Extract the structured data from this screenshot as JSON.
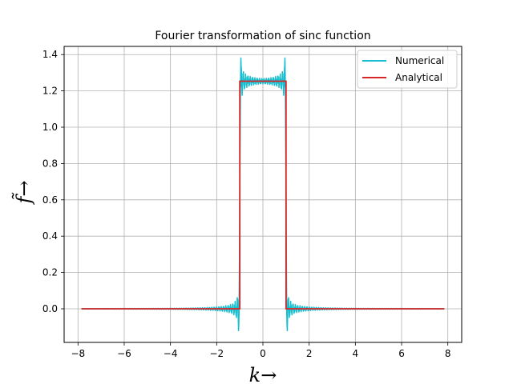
{
  "chart_data": {
    "type": "line",
    "title": "Fourier transformation of sinc function",
    "xlabel": "k→",
    "ylabel": "f̃→",
    "xlim": [
      -8.6,
      8.6
    ],
    "ylim": [
      -0.185,
      1.445
    ],
    "xticks": [
      -8,
      -6,
      -4,
      -2,
      0,
      2,
      4,
      6,
      8
    ],
    "xtick_labels": [
      "−8",
      "−6",
      "−4",
      "−2",
      "0",
      "2",
      "4",
      "6",
      "8"
    ],
    "yticks": [
      0.0,
      0.2,
      0.4,
      0.6,
      0.8,
      1.0,
      1.2,
      1.4
    ],
    "ytick_labels": [
      "0.0",
      "0.2",
      "0.4",
      "0.6",
      "0.8",
      "1.0",
      "1.2",
      "1.4"
    ],
    "grid": true,
    "legend": "upper right",
    "series": [
      {
        "name": "Numerical",
        "color": "#17becf",
        "x_range": [
          -7.85,
          7.85
        ],
        "plateau": 1.2533,
        "edge": 1.0,
        "overshoot_peak": 1.37,
        "undershoot_min": -0.11
      },
      {
        "name": "Analytical",
        "color": "#d62728",
        "x": [
          -7.85,
          -1.0,
          -1.0,
          1.0,
          1.0,
          7.85
        ],
        "y": [
          0.0,
          0.0,
          1.2533,
          1.2533,
          0.0,
          0.0
        ]
      }
    ]
  }
}
